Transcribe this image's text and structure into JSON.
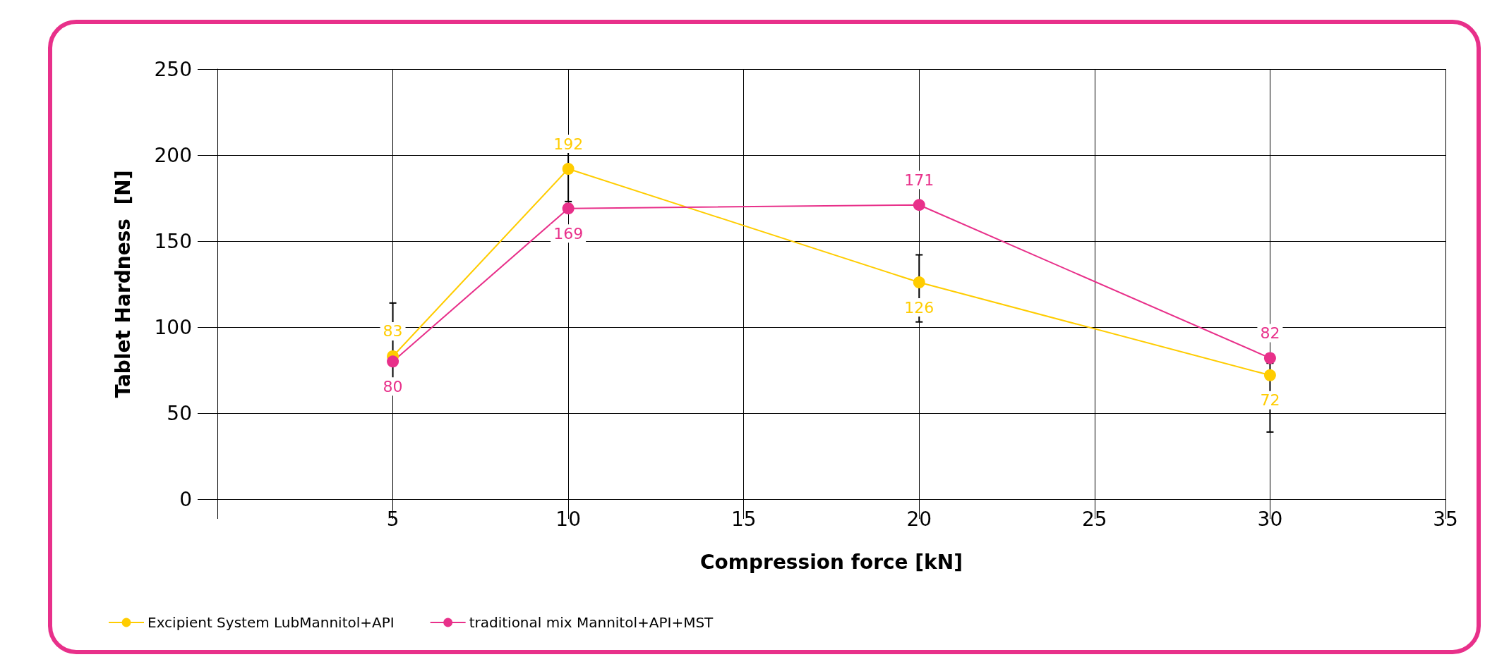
{
  "chart_data": {
    "type": "line",
    "xlabel": "Compression force [kN]",
    "ylabel": "Tablet Hardness  [N]",
    "x": [
      5,
      10,
      20,
      30
    ],
    "series": [
      {
        "name": "Excipient System LubMannitol+API",
        "color": "#ffcc00",
        "values": [
          83,
          192,
          126,
          72
        ],
        "errors": [
          [
            70,
            114
          ],
          [
            173,
            205
          ],
          [
            103,
            142
          ],
          [
            39,
            79
          ]
        ]
      },
      {
        "name": "traditional mix Mannitol+API+MST",
        "color": "#e8308a",
        "values": [
          80,
          169,
          171,
          82
        ]
      }
    ],
    "data_labels": true,
    "xlim": [
      0,
      35
    ],
    "xticks": [
      {
        "value": 0,
        "label": null
      },
      5,
      10,
      15,
      20,
      25,
      30,
      35
    ],
    "ylim": [
      0,
      250
    ],
    "yticks": [
      0,
      50,
      100,
      150,
      200,
      250
    ],
    "grid": true,
    "legend": "bottom left",
    "marker": "circle",
    "line_style": "solid"
  }
}
